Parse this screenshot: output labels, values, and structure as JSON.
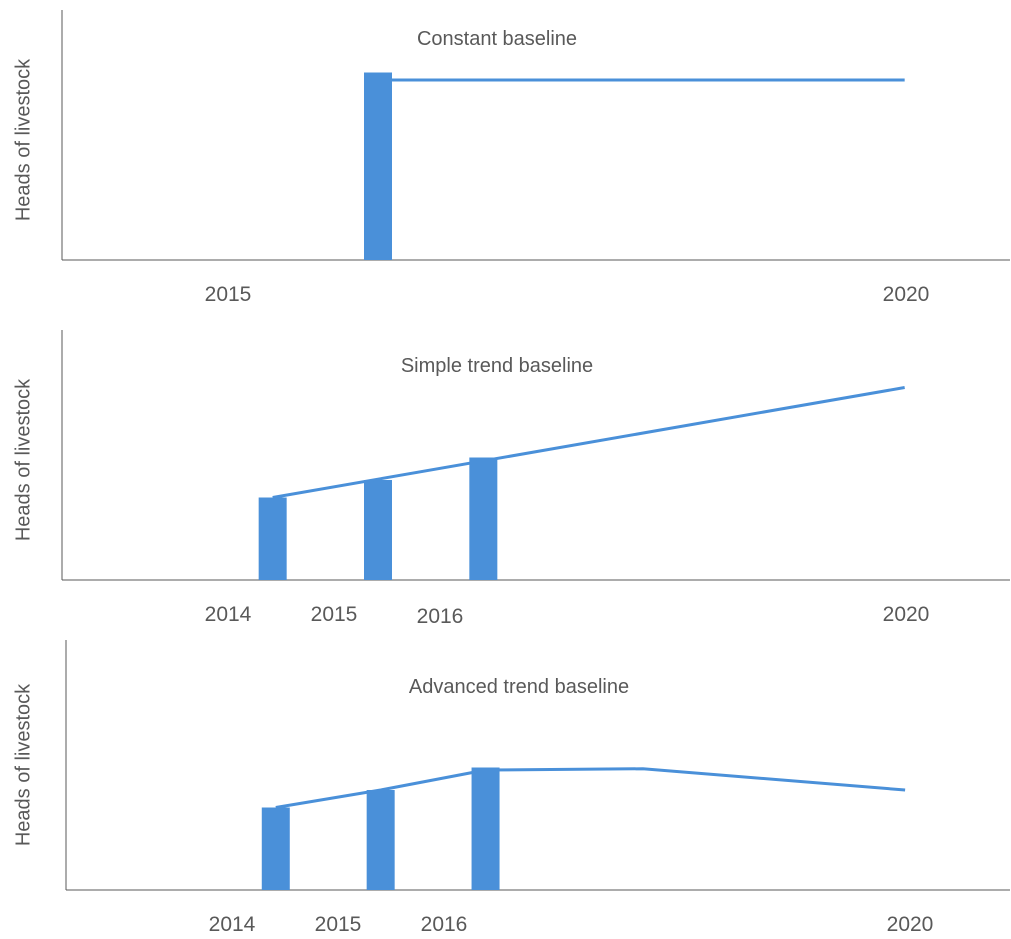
{
  "colors": {
    "series": "#4a90d9",
    "axis": "#595959",
    "text": "#595959"
  },
  "chart_data": [
    {
      "type": "bar",
      "title": "Constant baseline",
      "ylabel": "Heads of livestock",
      "xlim": [
        2012,
        2021
      ],
      "ylim": [
        0,
        100
      ],
      "x_ticks": [
        2015,
        2020
      ],
      "series": [
        {
          "type": "bar",
          "x": [
            2015
          ],
          "values": [
            75
          ]
        },
        {
          "type": "line",
          "x": [
            2015,
            2020
          ],
          "values": [
            72,
            72
          ]
        }
      ]
    },
    {
      "type": "bar",
      "title": "Simple trend baseline",
      "ylabel": "Heads of livestock",
      "xlim": [
        2012,
        2021
      ],
      "ylim": [
        0,
        100
      ],
      "x_ticks": [
        2014,
        2015,
        2016,
        2020
      ],
      "series": [
        {
          "type": "bar",
          "x": [
            2014,
            2015,
            2016
          ],
          "values": [
            33,
            40,
            49
          ]
        },
        {
          "type": "line",
          "x": [
            2014,
            2020
          ],
          "values": [
            33,
            77
          ]
        }
      ]
    },
    {
      "type": "bar",
      "title": "Advanced trend baseline",
      "ylabel": "Heads of livestock",
      "xlim": [
        2012,
        2021
      ],
      "ylim": [
        0,
        100
      ],
      "x_ticks": [
        2014,
        2015,
        2016,
        2020
      ],
      "series": [
        {
          "type": "bar",
          "x": [
            2014,
            2015,
            2016
          ],
          "values": [
            33,
            40,
            49
          ]
        },
        {
          "type": "line",
          "x": [
            2014,
            2015,
            2016,
            2017.5,
            2020
          ],
          "values": [
            33,
            40,
            48,
            48.5,
            40
          ]
        }
      ]
    }
  ]
}
